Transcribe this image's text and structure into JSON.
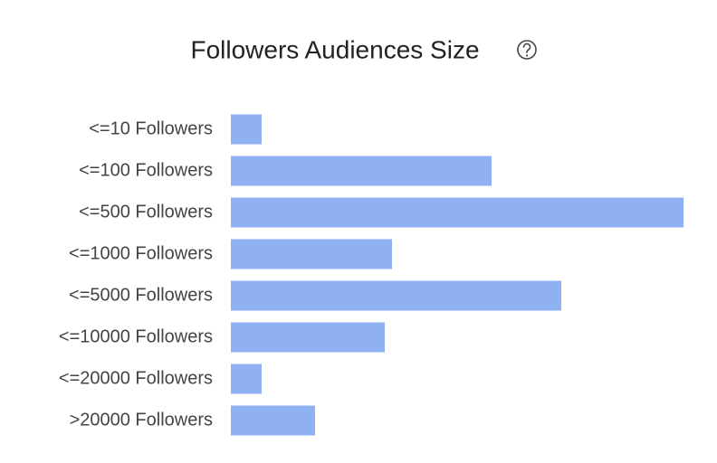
{
  "chart_data": {
    "type": "bar",
    "orientation": "horizontal",
    "title": "Followers Audiences Size",
    "categories": [
      "<=10 Followers",
      "<=100 Followers",
      "<=500 Followers",
      "<=1000 Followers",
      "<=5000 Followers",
      "<=10000 Followers",
      "<=20000 Followers",
      ">20000 Followers"
    ],
    "values": [
      34,
      288,
      500,
      178,
      365,
      170,
      34,
      93
    ],
    "color": "#8fb0f1"
  }
}
